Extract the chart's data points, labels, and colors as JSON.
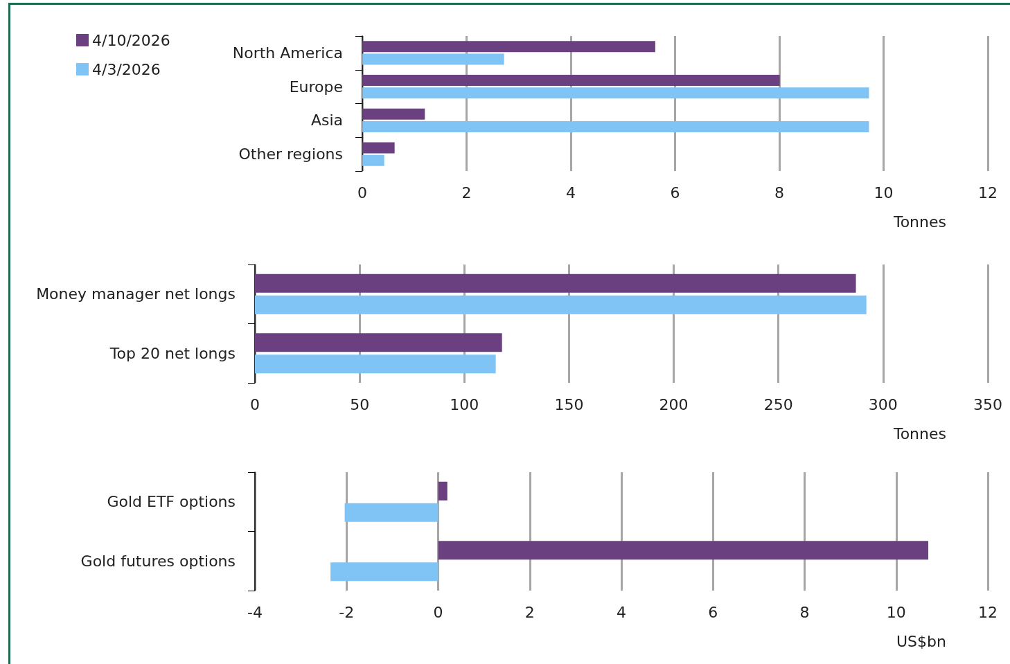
{
  "chart_data": [
    {
      "type": "bar",
      "orientation": "horizontal",
      "categories": [
        "North America",
        "Europe",
        "Asia",
        "Other regions"
      ],
      "xlabel": "Tonnes",
      "xlim": [
        0,
        12
      ],
      "xticks": [
        0,
        2,
        4,
        6,
        8,
        10,
        12
      ],
      "grid": "x",
      "legend": "top left",
      "series": [
        {
          "name": "4/10/2026",
          "color": "#6a4080",
          "values": [
            5.62,
            8.01,
            1.2,
            0.62
          ]
        },
        {
          "name": "4/3/2026",
          "color": "#7fc4f5",
          "values": [
            2.72,
            9.72,
            9.72,
            0.42
          ]
        }
      ]
    },
    {
      "type": "bar",
      "orientation": "horizontal",
      "categories": [
        "Money manager net longs",
        "Top 20 net longs"
      ],
      "xlabel": "Tonnes",
      "xlim": [
        0,
        350
      ],
      "xticks": [
        0,
        50,
        100,
        150,
        200,
        250,
        300,
        350
      ],
      "grid": "x",
      "legend": false,
      "series": [
        {
          "color": "#6a4080",
          "values": [
            287,
            118
          ]
        },
        {
          "color": "#7fc4f5",
          "values": [
            292,
            115
          ]
        }
      ]
    },
    {
      "type": "bar",
      "orientation": "horizontal",
      "categories": [
        "Gold ETF options",
        "Gold futures options"
      ],
      "xlabel": "US$bn",
      "xlim": [
        -4,
        12
      ],
      "xticks": [
        -4,
        -2,
        0,
        2,
        4,
        6,
        8,
        10,
        12
      ],
      "grid": "x",
      "legend": false,
      "series": [
        {
          "color": "#6a4080",
          "values": [
            0.2,
            10.7
          ]
        },
        {
          "color": "#7fc4f5",
          "values": [
            -2.04,
            -2.35
          ]
        }
      ]
    }
  ]
}
